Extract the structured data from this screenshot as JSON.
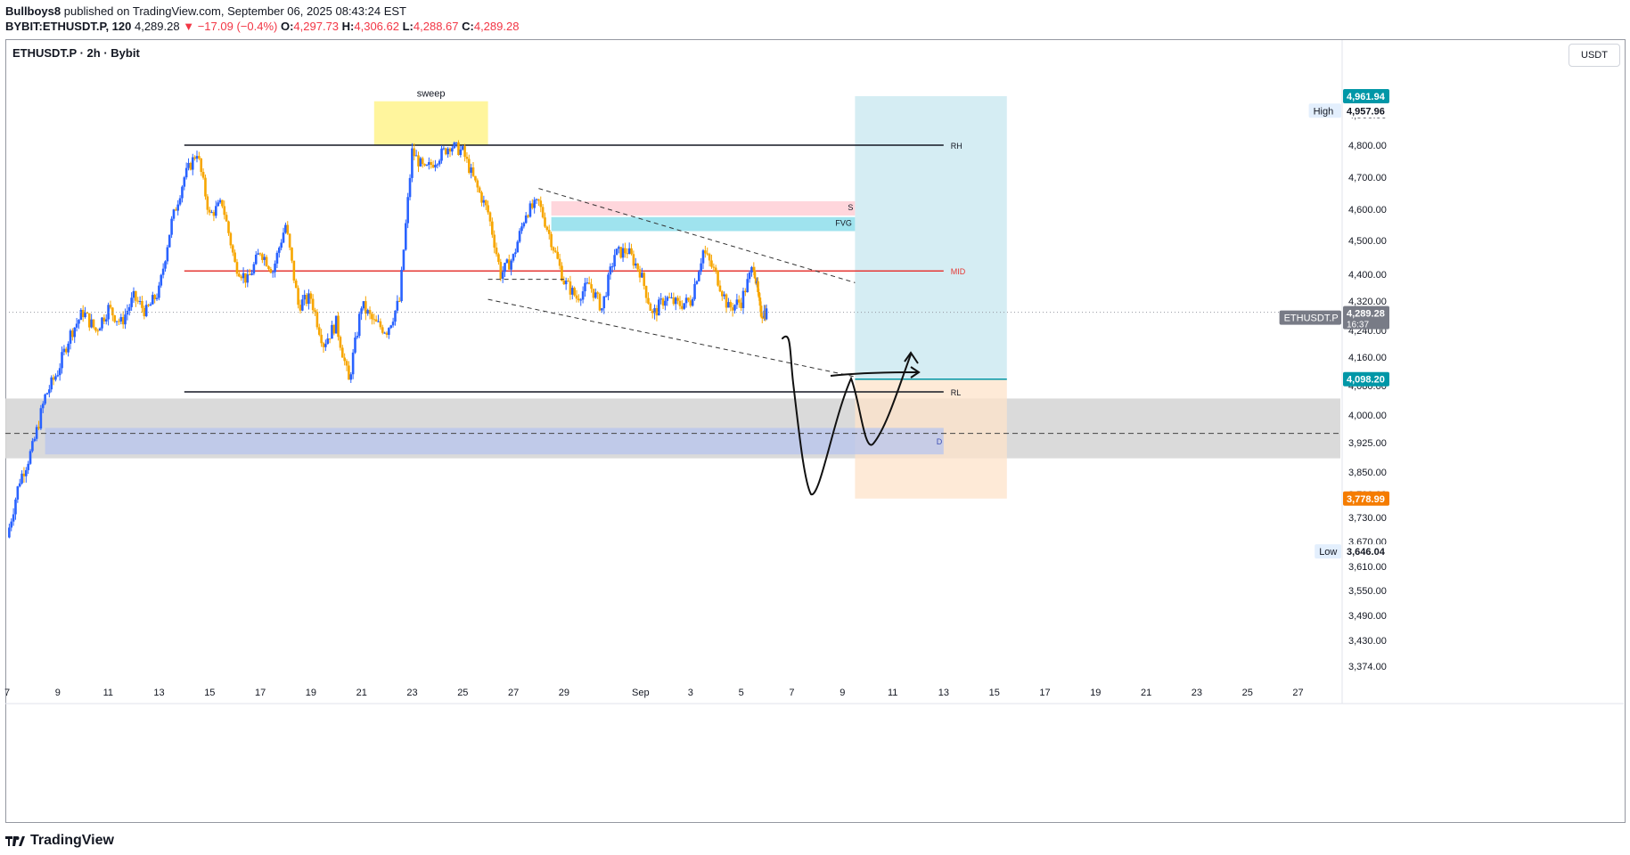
{
  "header": {
    "publisher": "Bullboys8",
    "published_text": "published on TradingView.com, September 06, 2025 08:43:24 EST",
    "symbol_full": "BYBIT:ETHUSDT.P, 120",
    "last": "4,289.28",
    "change": "−17.09 (−0.4%)",
    "open_label": "O:",
    "open": "4,297.73",
    "high_label": "H:",
    "high": "4,306.62",
    "low_label": "L:",
    "low": "4,288.67",
    "close_label": "C:",
    "close": "4,289.28"
  },
  "legend": {
    "title": "ETHUSDT.P · 2h · Bybit"
  },
  "currency_button": "USDT",
  "footer": {
    "brand": "TradingView"
  },
  "colors": {
    "up": "#2962ff",
    "down": "#f7a600",
    "mid_line": "#e53935",
    "target_zone": "#bfe3ec",
    "stop_zone": "#fde3c9",
    "demand_zone": "#d6d6d6",
    "demand_inner": "#b7c4ee",
    "fvg": "#9fe3ee",
    "supply": "#ffd6dc",
    "sweep": "#fff59d",
    "entry_badge": "#0097a7",
    "stop_badge": "#f57c00",
    "current_badge": "#787b86"
  },
  "chart_data": {
    "type": "candlestick",
    "symbol": "ETHUSDT.P",
    "timeframe": "2h",
    "exchange": "Bybit",
    "currency": "USDT",
    "ylim": [
      3320,
      5050
    ],
    "x_start": "2025-08-07",
    "x_end": "2025-09-28",
    "x_tick_labels": [
      {
        "label": "7",
        "date": "2025-08-07"
      },
      {
        "label": "9",
        "date": "2025-08-09"
      },
      {
        "label": "11",
        "date": "2025-08-11"
      },
      {
        "label": "13",
        "date": "2025-08-13"
      },
      {
        "label": "15",
        "date": "2025-08-15"
      },
      {
        "label": "17",
        "date": "2025-08-17"
      },
      {
        "label": "19",
        "date": "2025-08-19"
      },
      {
        "label": "21",
        "date": "2025-08-21"
      },
      {
        "label": "23",
        "date": "2025-08-23"
      },
      {
        "label": "25",
        "date": "2025-08-25"
      },
      {
        "label": "27",
        "date": "2025-08-27"
      },
      {
        "label": "29",
        "date": "2025-08-29"
      },
      {
        "label": "Sep",
        "date": "2025-09-01"
      },
      {
        "label": "3",
        "date": "2025-09-03"
      },
      {
        "label": "5",
        "date": "2025-09-05"
      },
      {
        "label": "7",
        "date": "2025-09-07"
      },
      {
        "label": "9",
        "date": "2025-09-09"
      },
      {
        "label": "11",
        "date": "2025-09-11"
      },
      {
        "label": "13",
        "date": "2025-09-13"
      },
      {
        "label": "15",
        "date": "2025-09-15"
      },
      {
        "label": "17",
        "date": "2025-09-17"
      },
      {
        "label": "19",
        "date": "2025-09-19"
      },
      {
        "label": "21",
        "date": "2025-09-21"
      },
      {
        "label": "23",
        "date": "2025-09-23"
      },
      {
        "label": "25",
        "date": "2025-09-25"
      },
      {
        "label": "27",
        "date": "2025-09-27"
      }
    ],
    "y_tick_labels": [
      "4,900.00",
      "4,800.00",
      "4,700.00",
      "4,600.00",
      "4,500.00",
      "4,400.00",
      "4,320.00",
      "4,240.00",
      "4,160.00",
      "4,080.00",
      "4,000.00",
      "3,925.00",
      "3,850.00",
      "3,790.00",
      "3,730.00",
      "3,670.00",
      "3,610.00",
      "3,550.00",
      "3,490.00",
      "3,430.00",
      "3,374.00"
    ],
    "y_tick_values": [
      4900,
      4800,
      4700,
      4600,
      4500,
      4400,
      4320,
      4240,
      4160,
      4080,
      4000,
      3925,
      3850,
      3790,
      3730,
      3670,
      3610,
      3550,
      3490,
      3430,
      3374
    ],
    "price_path": [
      {
        "date": "2025-08-07",
        "close": 3680
      },
      {
        "date": "2025-08-07T12",
        "close": 3830
      },
      {
        "date": "2025-08-08",
        "close": 3910
      },
      {
        "date": "2025-08-08T12",
        "close": 4050
      },
      {
        "date": "2025-08-09",
        "close": 4120
      },
      {
        "date": "2025-08-09T12",
        "close": 4230
      },
      {
        "date": "2025-08-10",
        "close": 4290
      },
      {
        "date": "2025-08-10T12",
        "close": 4240
      },
      {
        "date": "2025-08-11",
        "close": 4300
      },
      {
        "date": "2025-08-11T12",
        "close": 4260
      },
      {
        "date": "2025-08-12",
        "close": 4330
      },
      {
        "date": "2025-08-12T12",
        "close": 4290
      },
      {
        "date": "2025-08-13",
        "close": 4350
      },
      {
        "date": "2025-08-13T12",
        "close": 4560
      },
      {
        "date": "2025-08-14",
        "close": 4700
      },
      {
        "date": "2025-08-14T12",
        "close": 4780
      },
      {
        "date": "2025-08-15",
        "close": 4580
      },
      {
        "date": "2025-08-15T12",
        "close": 4620
      },
      {
        "date": "2025-08-16",
        "close": 4430
      },
      {
        "date": "2025-08-16T12",
        "close": 4380
      },
      {
        "date": "2025-08-17",
        "close": 4470
      },
      {
        "date": "2025-08-17T12",
        "close": 4410
      },
      {
        "date": "2025-08-18",
        "close": 4550
      },
      {
        "date": "2025-08-18T12",
        "close": 4310
      },
      {
        "date": "2025-08-19",
        "close": 4330
      },
      {
        "date": "2025-08-19T12",
        "close": 4200
      },
      {
        "date": "2025-08-20",
        "close": 4260
      },
      {
        "date": "2025-08-20T12",
        "close": 4090
      },
      {
        "date": "2025-08-21",
        "close": 4310
      },
      {
        "date": "2025-08-21T12",
        "close": 4260
      },
      {
        "date": "2025-08-22",
        "close": 4240
      },
      {
        "date": "2025-08-22T12",
        "close": 4320
      },
      {
        "date": "2025-08-23",
        "close": 4780
      },
      {
        "date": "2025-08-23T12",
        "close": 4720
      },
      {
        "date": "2025-08-24",
        "close": 4760
      },
      {
        "date": "2025-08-24T12",
        "close": 4800
      },
      {
        "date": "2025-08-25",
        "close": 4780
      },
      {
        "date": "2025-08-25T12",
        "close": 4680
      },
      {
        "date": "2025-08-26",
        "close": 4590
      },
      {
        "date": "2025-08-26T12",
        "close": 4400
      },
      {
        "date": "2025-08-27",
        "close": 4450
      },
      {
        "date": "2025-08-27T12",
        "close": 4590
      },
      {
        "date": "2025-08-28",
        "close": 4620
      },
      {
        "date": "2025-08-28T12",
        "close": 4500
      },
      {
        "date": "2025-08-29",
        "close": 4380
      },
      {
        "date": "2025-08-29T12",
        "close": 4330
      },
      {
        "date": "2025-08-30",
        "close": 4370
      },
      {
        "date": "2025-08-30T12",
        "close": 4300
      },
      {
        "date": "2025-08-31",
        "close": 4460
      },
      {
        "date": "2025-08-31T12",
        "close": 4470
      },
      {
        "date": "2025-09-01",
        "close": 4410
      },
      {
        "date": "2025-09-01T12",
        "close": 4280
      },
      {
        "date": "2025-09-02",
        "close": 4330
      },
      {
        "date": "2025-09-02T12",
        "close": 4310
      },
      {
        "date": "2025-09-03",
        "close": 4320
      },
      {
        "date": "2025-09-03T12",
        "close": 4470
      },
      {
        "date": "2025-09-04",
        "close": 4400
      },
      {
        "date": "2025-09-04T12",
        "close": 4300
      },
      {
        "date": "2025-09-05",
        "close": 4320
      },
      {
        "date": "2025-09-05T12",
        "close": 4430
      },
      {
        "date": "2025-09-05T18",
        "close": 4290
      },
      {
        "date": "2025-09-06",
        "close": 4289.28
      }
    ],
    "levels": [
      {
        "name": "RH",
        "price": 4800,
        "from": "2025-08-14",
        "to": "2025-09-13",
        "style": "solid",
        "color": "#131722"
      },
      {
        "name": "MID",
        "price": 4410,
        "from": "2025-08-14",
        "to": "2025-09-13",
        "style": "solid",
        "color": "#e53935"
      },
      {
        "name": "RL",
        "price": 4063,
        "from": "2025-08-14",
        "to": "2025-09-13",
        "style": "solid",
        "color": "#131722"
      }
    ],
    "zones": [
      {
        "name": "S",
        "price_top": 4625,
        "price_bottom": 4580,
        "from": "2025-08-28T12",
        "to": "2025-09-09T12",
        "color": "#ffd6dc"
      },
      {
        "name": "FVG",
        "price_top": 4575,
        "price_bottom": 4530,
        "from": "2025-08-28T12",
        "to": "2025-09-09T12",
        "color": "#9fe3ee"
      },
      {
        "name": "D",
        "price_top": 3965,
        "price_bottom": 3895,
        "from": "2025-08-08T12",
        "to": "2025-09-13",
        "color": "#b7c4ee"
      },
      {
        "name": "demand",
        "price_top": 4045,
        "price_bottom": 3885,
        "from": "2025-08-07",
        "to": "2025-09-28",
        "color": "#d6d6d6"
      },
      {
        "name": "sweep",
        "price_top": 4945,
        "price_bottom": 4800,
        "from": "2025-08-21T12",
        "to": "2025-08-26",
        "color": "#fff59d"
      }
    ],
    "annotations": [
      "sweep",
      "RH",
      "MID",
      "RL",
      "S",
      "FVG",
      "D"
    ],
    "position": {
      "type": "long",
      "entry": 4098.2,
      "target": 4961.94,
      "stop": 3778.99,
      "from": "2025-09-09T12",
      "to": "2025-09-15T12"
    },
    "price_badges": [
      {
        "label": "",
        "value": "4,961.94",
        "kind": "target"
      },
      {
        "label": "High",
        "value": "4,957.96",
        "kind": "plain"
      },
      {
        "label": "ETHUSDT.P",
        "value": "4,289.28",
        "sub": "16:37",
        "kind": "current"
      },
      {
        "label": "",
        "value": "4,098.20",
        "kind": "entry"
      },
      {
        "label": "",
        "value": "3,778.99",
        "kind": "stop"
      },
      {
        "label": "Low",
        "value": "3,646.04",
        "kind": "plain"
      }
    ],
    "current_price": 4289.28,
    "dashed_line_price": 3950
  }
}
